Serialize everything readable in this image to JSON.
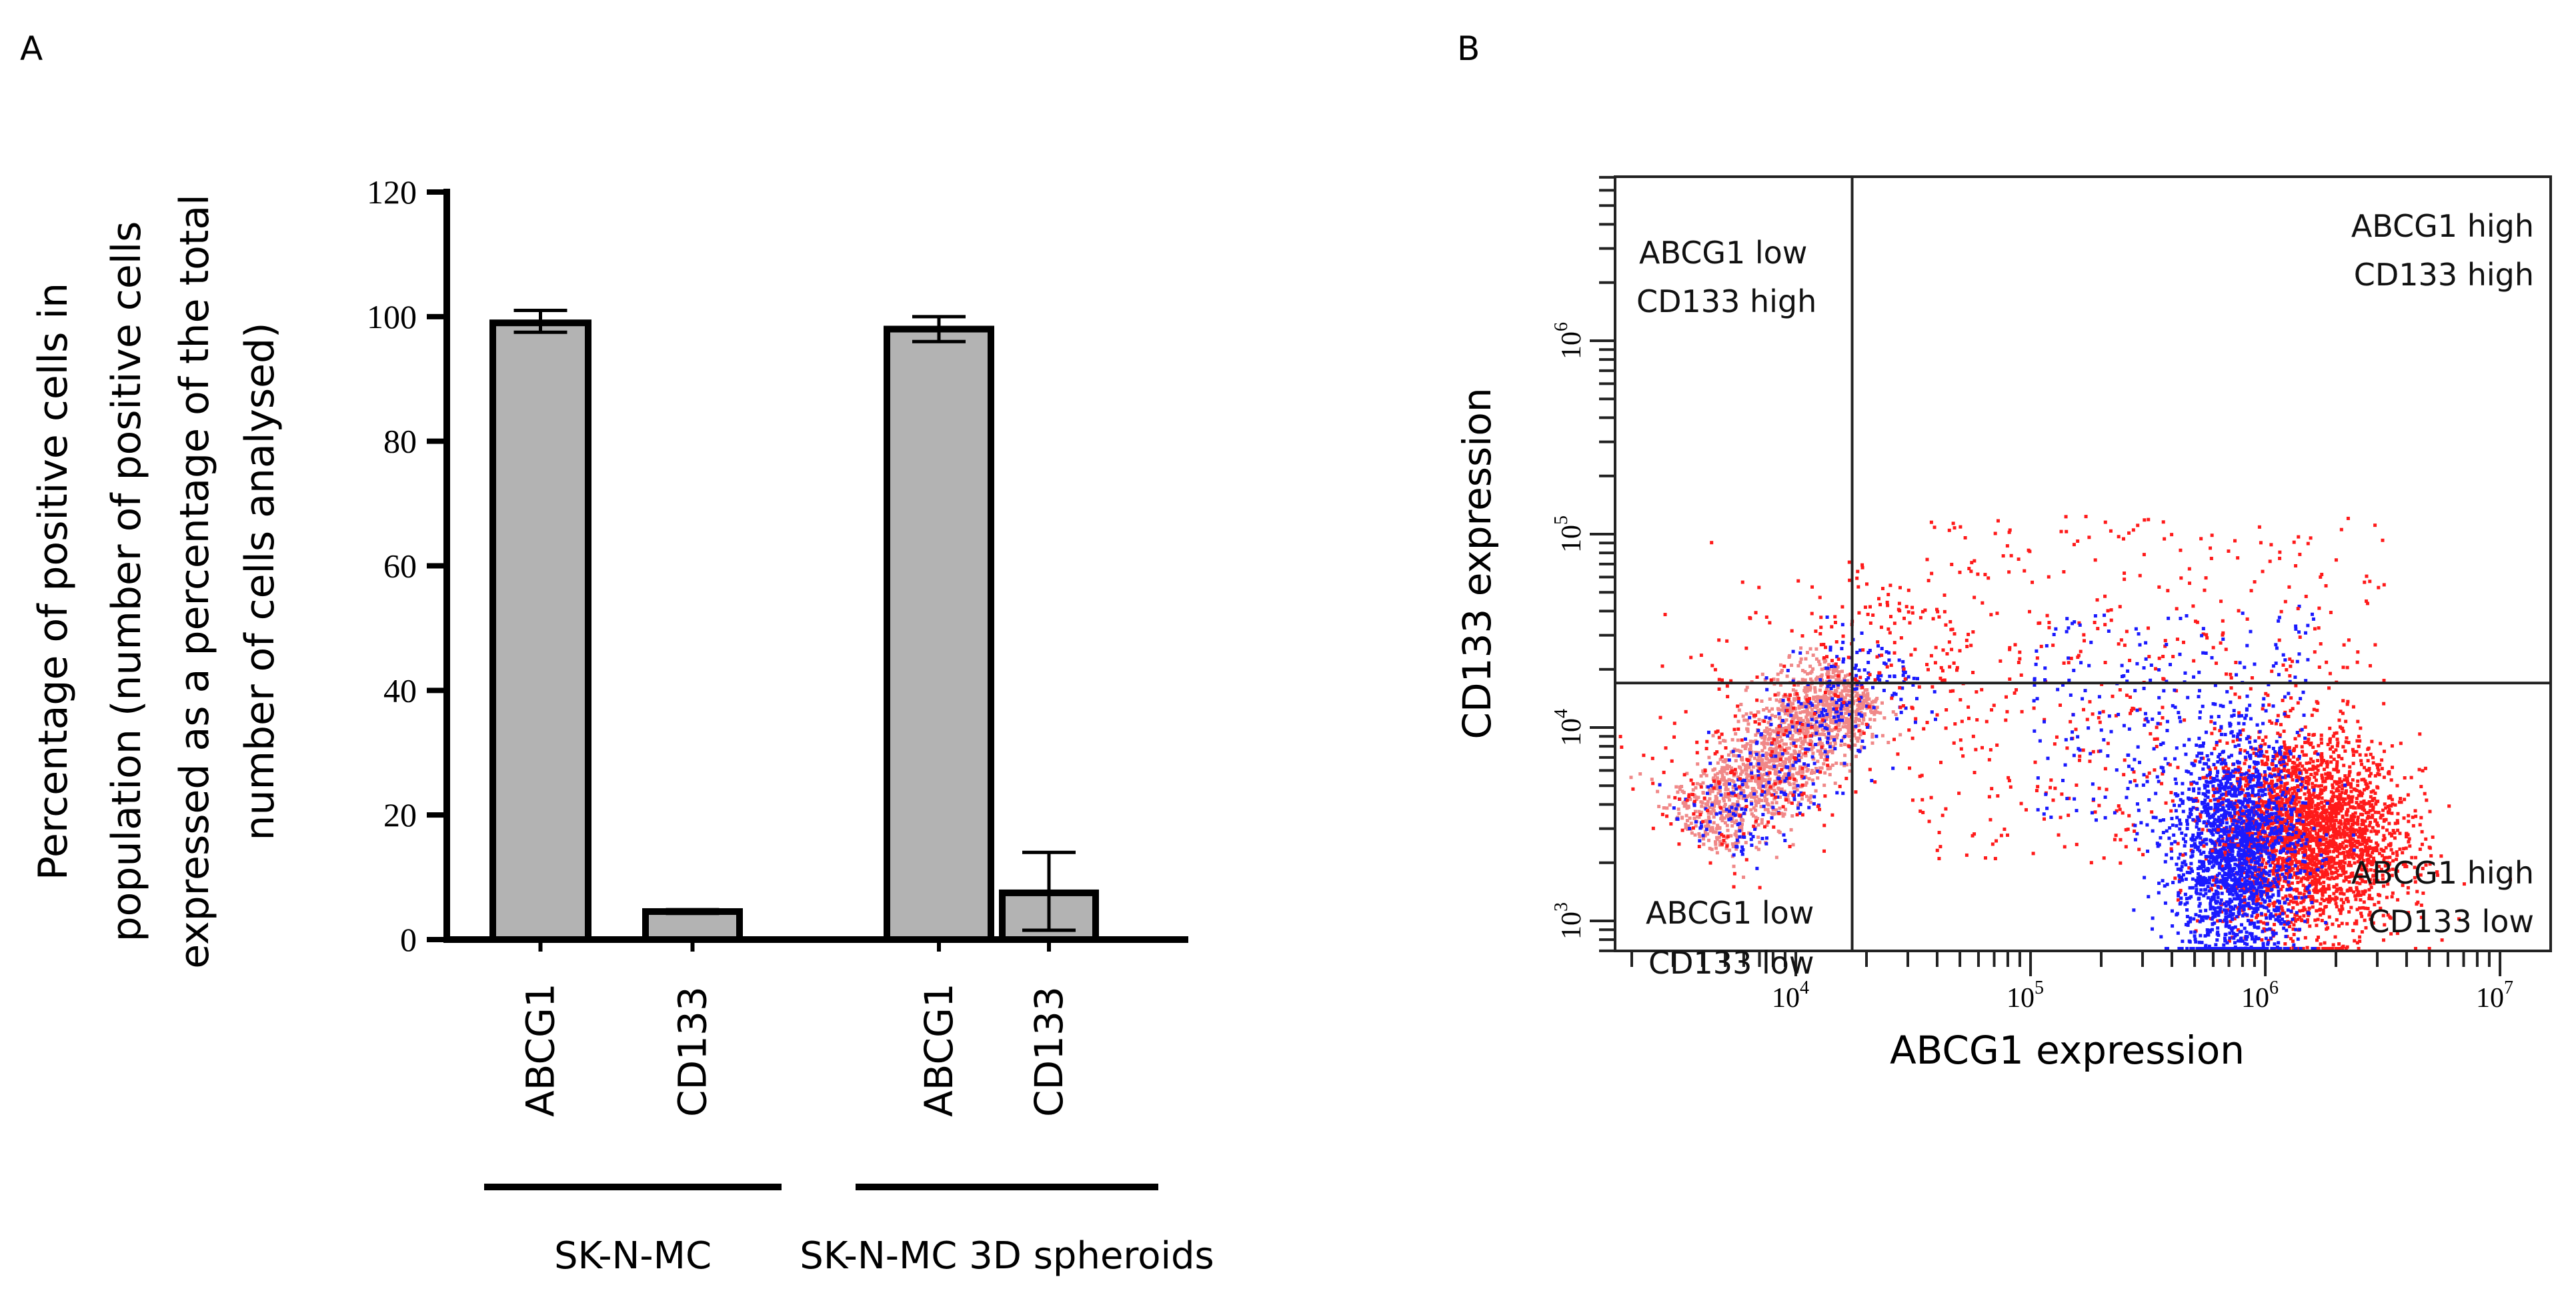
{
  "panels": {
    "a_label": "A",
    "b_label": "B"
  },
  "chart_data": [
    {
      "type": "bar",
      "ylabel_lines": [
        "Percentage of positive cells in",
        "population (number of positive cells",
        "expressed  as a percentage of the total",
        "number of cells analysed)"
      ],
      "ylim": [
        0,
        120
      ],
      "yticks": [
        "0",
        "20",
        "40",
        "60",
        "80",
        "100",
        "120"
      ],
      "categories": [
        "ABCG1",
        "CD133",
        "ABCG1",
        "CD133"
      ],
      "groups": [
        {
          "name": "SK-N-MC",
          "members": [
            0,
            1
          ]
        },
        {
          "name": "SK-N-MC 3D spheroids",
          "members": [
            2,
            3
          ]
        }
      ],
      "values": [
        99,
        4.5,
        98,
        7.5
      ],
      "error_low": [
        97.5,
        4.2,
        96,
        1.5
      ],
      "error_high": [
        101,
        4.8,
        100,
        14
      ],
      "bar_color": "#b3b3b3"
    },
    {
      "type": "scatter",
      "xlabel": "ABCG1 expression",
      "ylabel": "CD133 expression",
      "xscale": "log",
      "yscale": "log",
      "xlim_log10": [
        3.23,
        7.2
      ],
      "ylim_log10": [
        2.85,
        6.84
      ],
      "xticks": [
        {
          "base": "10",
          "exp": "4"
        },
        {
          "base": "10",
          "exp": "5"
        },
        {
          "base": "10",
          "exp": "6"
        },
        {
          "base": "10",
          "exp": "7"
        }
      ],
      "yticks": [
        {
          "base": "10",
          "exp": "3"
        },
        {
          "base": "10",
          "exp": "4"
        },
        {
          "base": "10",
          "exp": "5"
        },
        {
          "base": "10",
          "exp": "6"
        }
      ],
      "quadrant_gate_log10": {
        "x": 4.24,
        "y": 4.23
      },
      "quadrant_labels": {
        "upper_left": [
          "ABCG1 low",
          "CD133 high"
        ],
        "upper_right": [
          "ABCG1 high",
          "CD133 high"
        ],
        "lower_left": [
          "ABCG1 low",
          "CD133 low"
        ],
        "lower_right": [
          "ABCG1 high",
          "CD133 low"
        ]
      },
      "series_colors": {
        "red": "#ff1a1a",
        "blue": "#1a1aff",
        "pink": "#f08888"
      },
      "clusters_log10": [
        {
          "color": "pink",
          "kind": "diagonal",
          "from": [
            3.55,
            3.45
          ],
          "to": [
            4.25,
            4.25
          ],
          "width": 0.08,
          "n": 1600
        },
        {
          "color": "blue",
          "kind": "diagonal",
          "from": [
            3.6,
            3.4
          ],
          "to": [
            4.4,
            4.4
          ],
          "width": 0.1,
          "n": 350
        },
        {
          "color": "red",
          "kind": "diagonal",
          "from": [
            3.45,
            3.4
          ],
          "to": [
            4.5,
            4.7
          ],
          "width": 0.18,
          "n": 350
        },
        {
          "color": "red",
          "kind": "gauss",
          "center": [
            6.18,
            3.45
          ],
          "sd": [
            0.2,
            0.25
          ],
          "n": 2600
        },
        {
          "color": "blue",
          "kind": "gauss",
          "center": [
            5.87,
            3.35
          ],
          "sd": [
            0.14,
            0.3
          ],
          "n": 1800
        },
        {
          "color": "red",
          "kind": "uniform",
          "min": [
            4.5,
            3.3
          ],
          "max": [
            6.5,
            5.1
          ],
          "n": 500
        },
        {
          "color": "blue",
          "kind": "uniform",
          "min": [
            5.0,
            3.5
          ],
          "max": [
            6.2,
            4.6
          ],
          "n": 250
        }
      ]
    }
  ]
}
